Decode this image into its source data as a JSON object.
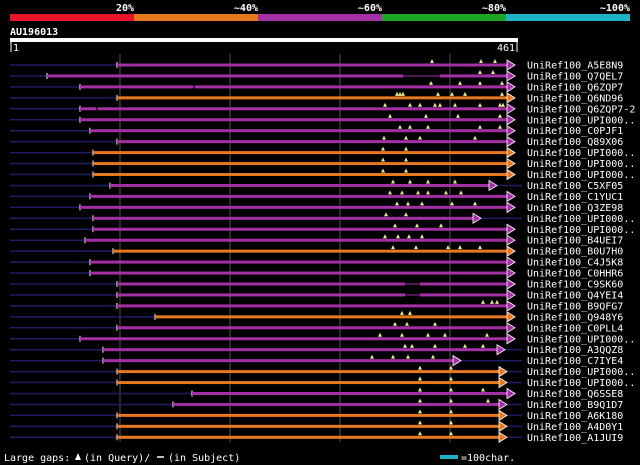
{
  "header": {
    "query_id": "AU196013",
    "ruler_start": "1",
    "ruler_end": "461",
    "identity_legend": [
      {
        "label": "20%",
        "color": "#e8142c"
      },
      {
        "label": "~40%",
        "color": "#e8781e"
      },
      {
        "label": "~60%",
        "color": "#a530a5"
      },
      {
        "label": "~80%",
        "color": "#1ea528"
      },
      {
        "label": "~100%",
        "color": "#1eb4c8"
      }
    ]
  },
  "footer": {
    "large_gaps_label": "Large gaps:",
    "query_gap_label": "(in Query)/",
    "subject_gap_label": "(in Subject)",
    "scale_label": "=100char."
  },
  "colors": {
    "purple": "#a530a5",
    "orange": "#e8781e",
    "marker": "#f0e68c",
    "tail": "#1e1e64",
    "grid": "#555555"
  },
  "hits": [
    {
      "name": "UniRef100_A5E8N9",
      "color": "purple",
      "start": 117,
      "end": 508,
      "left_tail": 10,
      "right_tail": false,
      "gaps": [],
      "marks": [
        432,
        481,
        495
      ]
    },
    {
      "name": "UniRef100_Q7QEL7",
      "color": "purple",
      "start": 47,
      "end": 508,
      "left_tail": 10,
      "right_tail": false,
      "gaps": [
        [
          403,
          440
        ]
      ],
      "marks": [
        480,
        493
      ]
    },
    {
      "name": "UniRef100_Q6ZQP7",
      "color": "purple",
      "start": 80,
      "end": 508,
      "left_tail": 10,
      "right_tail": false,
      "gaps": [
        [
          193,
          195
        ]
      ],
      "marks": [
        431,
        460,
        480,
        502
      ]
    },
    {
      "name": "UniRef100_Q6ND96",
      "color": "orange",
      "start": 117,
      "end": 508,
      "left_tail": 10,
      "right_tail": false,
      "gaps": [],
      "marks": [
        397,
        400,
        403,
        438,
        452,
        465,
        502
      ]
    },
    {
      "name": "UniRef100_Q6ZQP7-2",
      "color": "purple",
      "start": 80,
      "end": 508,
      "left_tail": 10,
      "right_tail": false,
      "gaps": [
        [
          96,
          98
        ]
      ],
      "marks": [
        385,
        410,
        420,
        435,
        440,
        455,
        480,
        500,
        503
      ]
    },
    {
      "name": "UniRef100_UPI000..",
      "color": "purple",
      "start": 80,
      "end": 508,
      "left_tail": 10,
      "right_tail": false,
      "gaps": [],
      "marks": [
        390,
        426,
        458,
        500
      ]
    },
    {
      "name": "UniRef100_C0PJF1",
      "color": "purple",
      "start": 90,
      "end": 508,
      "left_tail": 10,
      "right_tail": false,
      "gaps": [],
      "marks": [
        400,
        410,
        428,
        480,
        500
      ]
    },
    {
      "name": "UniRef100_Q89X06",
      "color": "purple",
      "start": 117,
      "end": 508,
      "left_tail": 10,
      "right_tail": false,
      "gaps": [],
      "marks": [
        384,
        406,
        420,
        475
      ]
    },
    {
      "name": "UniRef100_UPI000..",
      "color": "orange",
      "start": 93,
      "end": 508,
      "left_tail": 10,
      "right_tail": false,
      "gaps": [],
      "marks": [
        383,
        406
      ]
    },
    {
      "name": "UniRef100_UPI000..",
      "color": "orange",
      "start": 93,
      "end": 508,
      "left_tail": 10,
      "right_tail": false,
      "gaps": [],
      "marks": [
        383,
        406
      ]
    },
    {
      "name": "UniRef100_UPI000..",
      "color": "orange",
      "start": 93,
      "end": 508,
      "left_tail": 10,
      "right_tail": false,
      "gaps": [],
      "marks": [
        383,
        406
      ]
    },
    {
      "name": "UniRef100_C5XF05",
      "color": "purple",
      "start": 110,
      "end": 490,
      "left_tail": 10,
      "right_tail": true,
      "gaps": [],
      "marks": [
        393,
        410,
        428,
        455
      ]
    },
    {
      "name": "UniRef100_C1YUC1",
      "color": "purple",
      "start": 90,
      "end": 508,
      "left_tail": 10,
      "right_tail": false,
      "gaps": [],
      "marks": [
        390,
        402,
        418,
        428,
        446,
        461
      ]
    },
    {
      "name": "UniRef100_Q3ZE98",
      "color": "purple",
      "start": 80,
      "end": 508,
      "left_tail": 10,
      "right_tail": false,
      "gaps": [],
      "marks": [
        397,
        408,
        422,
        452,
        475
      ]
    },
    {
      "name": "UniRef100_UPI000..",
      "color": "purple",
      "start": 93,
      "end": 474,
      "left_tail": 10,
      "right_tail": true,
      "gaps": [],
      "marks": [
        386,
        406
      ]
    },
    {
      "name": "UniRef100_UPI000..",
      "color": "purple",
      "start": 93,
      "end": 508,
      "left_tail": 10,
      "right_tail": false,
      "gaps": [],
      "marks": [
        395,
        417,
        441
      ]
    },
    {
      "name": "UniRef100_B4UEI7",
      "color": "purple",
      "start": 85,
      "end": 508,
      "left_tail": 10,
      "right_tail": false,
      "gaps": [],
      "marks": [
        385,
        398,
        409,
        422
      ]
    },
    {
      "name": "UniRef100_B0U7H0",
      "color": "orange",
      "start": 113,
      "end": 508,
      "left_tail": 10,
      "right_tail": false,
      "gaps": [],
      "marks": [
        393,
        416,
        448,
        460,
        480
      ]
    },
    {
      "name": "UniRef100_C4J5K8",
      "color": "purple",
      "start": 90,
      "end": 508,
      "left_tail": 10,
      "right_tail": false,
      "gaps": [],
      "marks": []
    },
    {
      "name": "UniRef100_C0HHR6",
      "color": "purple",
      "start": 90,
      "end": 508,
      "left_tail": 10,
      "right_tail": false,
      "gaps": [],
      "marks": []
    },
    {
      "name": "UniRef100_C9SK60",
      "color": "purple",
      "start": 117,
      "end": 508,
      "left_tail": 10,
      "right_tail": false,
      "gaps": [
        [
          405,
          420
        ]
      ],
      "marks": []
    },
    {
      "name": "UniRef100_Q4YEI4",
      "color": "purple",
      "start": 117,
      "end": 508,
      "left_tail": 10,
      "right_tail": false,
      "gaps": [
        [
          405,
          420
        ]
      ],
      "marks": []
    },
    {
      "name": "UniRef100_B9QFG7",
      "color": "purple",
      "start": 117,
      "end": 508,
      "left_tail": 10,
      "right_tail": false,
      "gaps": [],
      "marks": [
        483,
        492,
        497
      ]
    },
    {
      "name": "UniRef100_Q948Y6",
      "color": "orange",
      "start": 155,
      "end": 508,
      "left_tail": 10,
      "right_tail": false,
      "gaps": [],
      "marks": [
        402,
        410
      ]
    },
    {
      "name": "UniRef100_C0PLL4",
      "color": "purple",
      "start": 117,
      "end": 508,
      "left_tail": 10,
      "right_tail": false,
      "gaps": [],
      "marks": [
        395,
        407,
        435
      ]
    },
    {
      "name": "UniRef100_UPI000..",
      "color": "purple",
      "start": 80,
      "end": 508,
      "left_tail": 10,
      "right_tail": false,
      "gaps": [],
      "marks": [
        380,
        402,
        428,
        445,
        487
      ]
    },
    {
      "name": "UniRef100_A3QQZ8",
      "color": "purple",
      "start": 103,
      "end": 498,
      "left_tail": 10,
      "right_tail": true,
      "gaps": [],
      "marks": [
        405,
        412,
        435,
        465,
        483
      ]
    },
    {
      "name": "UniRef100_C7IYE4",
      "color": "purple",
      "start": 103,
      "end": 454,
      "left_tail": 10,
      "right_tail": true,
      "gaps": [],
      "marks": [
        372,
        393,
        408,
        433
      ]
    },
    {
      "name": "UniRef100_UPI000..",
      "color": "orange",
      "start": 117,
      "end": 500,
      "left_tail": 10,
      "right_tail": true,
      "gaps": [],
      "marks": [
        420,
        451
      ]
    },
    {
      "name": "UniRef100_UPI000..",
      "color": "orange",
      "start": 117,
      "end": 500,
      "left_tail": 10,
      "right_tail": true,
      "gaps": [],
      "marks": [
        420,
        451
      ]
    },
    {
      "name": "UniRef100_Q6SSE8",
      "color": "purple",
      "start": 192,
      "end": 508,
      "left_tail": 10,
      "right_tail": false,
      "gaps": [],
      "marks": [
        420,
        451,
        483
      ]
    },
    {
      "name": "UniRef100_B9Q1D7",
      "color": "purple",
      "start": 173,
      "end": 500,
      "left_tail": 10,
      "right_tail": true,
      "gaps": [],
      "marks": [
        420,
        451,
        488
      ]
    },
    {
      "name": "UniRef100_A6K180",
      "color": "orange",
      "start": 117,
      "end": 500,
      "left_tail": 10,
      "right_tail": true,
      "gaps": [],
      "marks": [
        420,
        451
      ]
    },
    {
      "name": "UniRef100_A4D0Y1",
      "color": "orange",
      "start": 117,
      "end": 500,
      "left_tail": 10,
      "right_tail": true,
      "gaps": [],
      "marks": [
        420,
        451
      ]
    },
    {
      "name": "UniRef100_A1JUI9",
      "color": "orange",
      "start": 117,
      "end": 500,
      "left_tail": 10,
      "right_tail": true,
      "gaps": [],
      "marks": [
        420,
        451
      ]
    }
  ]
}
